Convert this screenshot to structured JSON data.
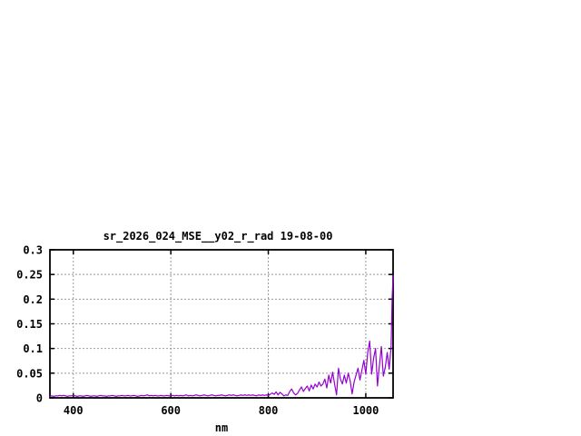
{
  "chart": {
    "title": "sr_2026_024_MSE__y02_r_rad 19-08-00",
    "xlabel": "nm"
  },
  "chart_data": {
    "type": "line",
    "title": "sr_2026_024_MSE__y02_r_rad 19-08-00",
    "xlabel": "nm",
    "ylabel": "",
    "xlim": [
      352,
      1056
    ],
    "ylim": [
      0,
      0.3
    ],
    "x_ticks": [
      400,
      600,
      800,
      1000
    ],
    "x_tick_labels": [
      "400",
      "600",
      "800",
      "1000"
    ],
    "y_ticks": [
      0,
      0.05,
      0.1,
      0.15,
      0.2,
      0.25,
      0.3
    ],
    "y_tick_labels": [
      "0",
      "0.05",
      "0.1",
      "0.15",
      "0.2",
      "0.25",
      "0.3"
    ],
    "grid": true,
    "grid_style": "dashed",
    "grid_color": "#9a9a9a",
    "border_color": "#000000",
    "background_color": "#ffffff",
    "legend": false,
    "series": [
      {
        "name": "sr_2026_024_MSE__y02_r_rad",
        "color": "#9400d3",
        "points": [
          [
            352,
            0.003
          ],
          [
            356,
            0.004
          ],
          [
            360,
            0.003
          ],
          [
            364,
            0.004
          ],
          [
            368,
            0.004
          ],
          [
            372,
            0.005
          ],
          [
            376,
            0.004
          ],
          [
            380,
            0.005
          ],
          [
            384,
            0.004
          ],
          [
            388,
            0.003
          ],
          [
            392,
            0.004
          ],
          [
            396,
            0.004
          ],
          [
            400,
            0.005
          ],
          [
            404,
            0.004
          ],
          [
            408,
            0.003
          ],
          [
            412,
            0.004
          ],
          [
            416,
            0.004
          ],
          [
            420,
            0.003
          ],
          [
            424,
            0.004
          ],
          [
            428,
            0.005
          ],
          [
            432,
            0.004
          ],
          [
            436,
            0.003
          ],
          [
            440,
            0.004
          ],
          [
            444,
            0.004
          ],
          [
            448,
            0.003
          ],
          [
            452,
            0.004
          ],
          [
            456,
            0.005
          ],
          [
            460,
            0.004
          ],
          [
            464,
            0.004
          ],
          [
            468,
            0.003
          ],
          [
            472,
            0.004
          ],
          [
            476,
            0.004
          ],
          [
            480,
            0.005
          ],
          [
            484,
            0.004
          ],
          [
            488,
            0.003
          ],
          [
            492,
            0.004
          ],
          [
            496,
            0.004
          ],
          [
            500,
            0.005
          ],
          [
            504,
            0.004
          ],
          [
            508,
            0.004
          ],
          [
            512,
            0.005
          ],
          [
            516,
            0.004
          ],
          [
            520,
            0.004
          ],
          [
            524,
            0.005
          ],
          [
            528,
            0.004
          ],
          [
            532,
            0.003
          ],
          [
            536,
            0.004
          ],
          [
            540,
            0.005
          ],
          [
            544,
            0.004
          ],
          [
            548,
            0.005
          ],
          [
            552,
            0.006
          ],
          [
            556,
            0.004
          ],
          [
            560,
            0.005
          ],
          [
            564,
            0.004
          ],
          [
            568,
            0.005
          ],
          [
            572,
            0.004
          ],
          [
            576,
            0.004
          ],
          [
            580,
            0.005
          ],
          [
            584,
            0.004
          ],
          [
            588,
            0.004
          ],
          [
            592,
            0.005
          ],
          [
            596,
            0.004
          ],
          [
            600,
            0.004
          ],
          [
            604,
            0.005
          ],
          [
            608,
            0.004
          ],
          [
            612,
            0.005
          ],
          [
            616,
            0.004
          ],
          [
            620,
            0.005
          ],
          [
            624,
            0.004
          ],
          [
            628,
            0.005
          ],
          [
            632,
            0.006
          ],
          [
            636,
            0.004
          ],
          [
            640,
            0.005
          ],
          [
            644,
            0.004
          ],
          [
            648,
            0.005
          ],
          [
            652,
            0.006
          ],
          [
            656,
            0.005
          ],
          [
            660,
            0.004
          ],
          [
            664,
            0.005
          ],
          [
            668,
            0.006
          ],
          [
            672,
            0.005
          ],
          [
            676,
            0.004
          ],
          [
            680,
            0.005
          ],
          [
            684,
            0.006
          ],
          [
            688,
            0.005
          ],
          [
            692,
            0.004
          ],
          [
            696,
            0.005
          ],
          [
            700,
            0.005
          ],
          [
            704,
            0.006
          ],
          [
            708,
            0.005
          ],
          [
            712,
            0.004
          ],
          [
            716,
            0.005
          ],
          [
            720,
            0.006
          ],
          [
            724,
            0.005
          ],
          [
            728,
            0.006
          ],
          [
            732,
            0.005
          ],
          [
            736,
            0.004
          ],
          [
            740,
            0.005
          ],
          [
            744,
            0.006
          ],
          [
            748,
            0.005
          ],
          [
            752,
            0.006
          ],
          [
            756,
            0.005
          ],
          [
            760,
            0.006
          ],
          [
            764,
            0.005
          ],
          [
            768,
            0.006
          ],
          [
            772,
            0.005
          ],
          [
            776,
            0.004
          ],
          [
            780,
            0.006
          ],
          [
            784,
            0.005
          ],
          [
            788,
            0.006
          ],
          [
            792,
            0.005
          ],
          [
            796,
            0.006
          ],
          [
            800,
            0.005
          ],
          [
            804,
            0.007
          ],
          [
            808,
            0.01
          ],
          [
            812,
            0.007
          ],
          [
            816,
            0.012
          ],
          [
            820,
            0.006
          ],
          [
            824,
            0.011
          ],
          [
            828,
            0.008
          ],
          [
            832,
            0.004
          ],
          [
            836,
            0.006
          ],
          [
            840,
            0.005
          ],
          [
            844,
            0.013
          ],
          [
            848,
            0.018
          ],
          [
            852,
            0.01
          ],
          [
            856,
            0.006
          ],
          [
            860,
            0.009
          ],
          [
            864,
            0.016
          ],
          [
            868,
            0.022
          ],
          [
            872,
            0.013
          ],
          [
            876,
            0.019
          ],
          [
            880,
            0.024
          ],
          [
            884,
            0.014
          ],
          [
            888,
            0.026
          ],
          [
            892,
            0.018
          ],
          [
            896,
            0.028
          ],
          [
            900,
            0.022
          ],
          [
            904,
            0.032
          ],
          [
            908,
            0.024
          ],
          [
            912,
            0.028
          ],
          [
            916,
            0.038
          ],
          [
            920,
            0.02
          ],
          [
            924,
            0.046
          ],
          [
            928,
            0.03
          ],
          [
            932,
            0.052
          ],
          [
            936,
            0.028
          ],
          [
            940,
            0.006
          ],
          [
            944,
            0.06
          ],
          [
            948,
            0.038
          ],
          [
            952,
            0.028
          ],
          [
            956,
            0.046
          ],
          [
            960,
            0.03
          ],
          [
            964,
            0.05
          ],
          [
            968,
            0.034
          ],
          [
            972,
            0.008
          ],
          [
            976,
            0.032
          ],
          [
            980,
            0.046
          ],
          [
            984,
            0.06
          ],
          [
            988,
            0.036
          ],
          [
            992,
            0.056
          ],
          [
            996,
            0.076
          ],
          [
            1000,
            0.048
          ],
          [
            1004,
            0.092
          ],
          [
            1008,
            0.115
          ],
          [
            1012,
            0.048
          ],
          [
            1016,
            0.08
          ],
          [
            1020,
            0.1
          ],
          [
            1024,
            0.024
          ],
          [
            1028,
            0.066
          ],
          [
            1032,
            0.104
          ],
          [
            1036,
            0.044
          ],
          [
            1040,
            0.062
          ],
          [
            1044,
            0.092
          ],
          [
            1048,
            0.058
          ],
          [
            1052,
            0.105
          ],
          [
            1054,
            0.2
          ],
          [
            1056,
            0.248
          ]
        ]
      }
    ]
  }
}
